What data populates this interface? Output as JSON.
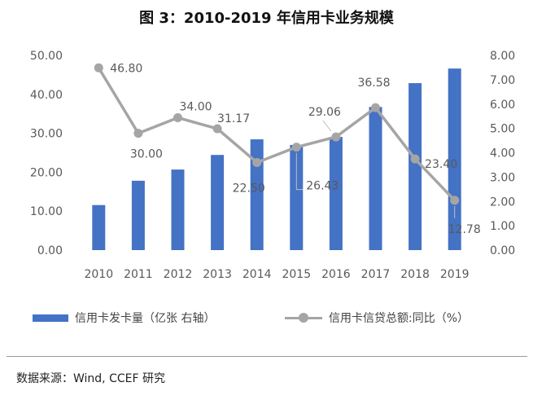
{
  "title": "图 3：2010-2019 年信用卡业务规模",
  "source": "数据来源：Wind, CCEF 研究",
  "colors": {
    "bar": "#4472C4",
    "line": "#A5A5A5",
    "text": "#595959"
  },
  "chart_data": {
    "type": "bar",
    "categories": [
      "2010",
      "2011",
      "2012",
      "2013",
      "2014",
      "2015",
      "2016",
      "2017",
      "2018",
      "2019"
    ],
    "series": [
      {
        "name": "信用卡发卡量（亿张 右轴）",
        "type": "bar",
        "axis": "right",
        "values": [
          1.85,
          2.85,
          3.31,
          3.91,
          4.55,
          4.32,
          4.65,
          5.88,
          6.86,
          7.46
        ]
      },
      {
        "name": "信用卡信贷总额:同比（%）",
        "type": "line",
        "axis": "left",
        "values": [
          46.8,
          30.0,
          34.0,
          31.17,
          22.5,
          26.43,
          29.06,
          36.58,
          23.4,
          12.78
        ],
        "labels": [
          "46.80",
          "30.00",
          "34.00",
          "31.17",
          "22.50",
          "26.43",
          "29.06",
          "36.58",
          "23.40",
          "12.78"
        ]
      }
    ],
    "y_left": {
      "ylim": [
        0,
        50
      ],
      "ticks": [
        "0.00",
        "10.00",
        "20.00",
        "30.00",
        "40.00",
        "50.00"
      ]
    },
    "y_right": {
      "ylim": [
        0,
        8
      ],
      "ticks": [
        "0.00",
        "1.00",
        "2.00",
        "3.00",
        "4.00",
        "5.00",
        "6.00",
        "7.00",
        "8.00"
      ]
    },
    "grid": false,
    "legend_position": "bottom"
  }
}
